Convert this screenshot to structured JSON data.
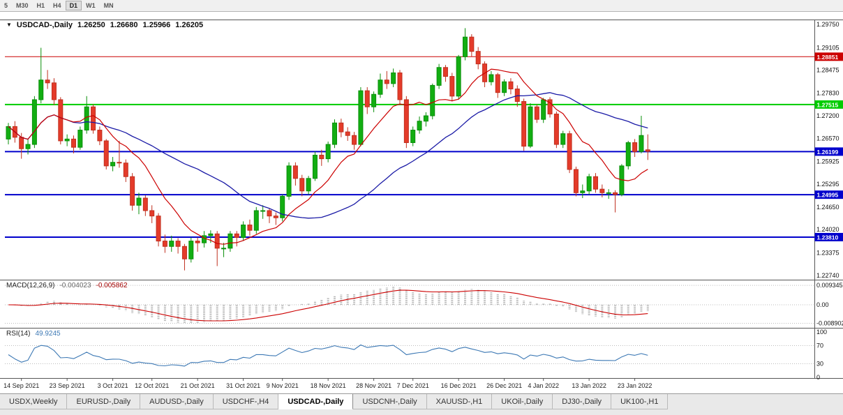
{
  "toolbar": {
    "periods": [
      "5",
      "M30",
      "H1",
      "H4",
      "D1",
      "W1",
      "MN"
    ],
    "active_period": "D1"
  },
  "chart": {
    "symbol_label": "USDCAD-,Daily",
    "ohlc": {
      "open": "1.26250",
      "high": "1.26680",
      "low": "1.25966",
      "close": "1.26205"
    }
  },
  "chart_data": {
    "type": "candlestick",
    "title": "USDCAD-,Daily",
    "ylim": [
      1.2262,
      1.2989
    ],
    "up_color": "#0a8f0a",
    "up_fill": "#12ae12",
    "down_color": "#c0301f",
    "down_fill": "#e43b2a",
    "ma_fast": {
      "period": 10,
      "color": "#cc0000"
    },
    "ma_slow": {
      "period": 30,
      "color": "#1a1aa6"
    },
    "price_ticks": [
      1.2975,
      1.29105,
      1.28475,
      1.2783,
      1.272,
      1.2657,
      1.25925,
      1.25295,
      1.2465,
      1.2402,
      1.23375,
      1.2274
    ],
    "hlines": [
      {
        "value": 1.28851,
        "color": "#cc0000",
        "width": 1
      },
      {
        "value": 1.27515,
        "color": "#00cc00",
        "width": 2
      },
      {
        "value": 1.26199,
        "color": "#0000cc",
        "width": 2
      },
      {
        "value": 1.24995,
        "color": "#0000cc",
        "width": 2
      },
      {
        "value": 1.2381,
        "color": "#0000cc",
        "width": 2
      }
    ],
    "date_ticks": [
      {
        "i": 2,
        "label": "14 Sep 2021"
      },
      {
        "i": 9,
        "label": "23 Sep 2021"
      },
      {
        "i": 16,
        "label": "3 Oct 2021"
      },
      {
        "i": 22,
        "label": "12 Oct 2021"
      },
      {
        "i": 29,
        "label": "21 Oct 2021"
      },
      {
        "i": 36,
        "label": "31 Oct 2021"
      },
      {
        "i": 42,
        "label": "9 Nov 2021"
      },
      {
        "i": 49,
        "label": "18 Nov 2021"
      },
      {
        "i": 56,
        "label": "28 Nov 2021"
      },
      {
        "i": 62,
        "label": "7 Dec 2021"
      },
      {
        "i": 69,
        "label": "16 Dec 2021"
      },
      {
        "i": 76,
        "label": "26 Dec 2021"
      },
      {
        "i": 82,
        "label": "4 Jan 2022"
      },
      {
        "i": 89,
        "label": "13 Jan 2022"
      },
      {
        "i": 96,
        "label": "23 Jan 2022"
      }
    ],
    "candles": [
      [
        1.2655,
        1.27,
        1.264,
        1.269
      ],
      [
        1.269,
        1.2705,
        1.2645,
        1.266
      ],
      [
        1.266,
        1.2672,
        1.26,
        1.2628
      ],
      [
        1.2628,
        1.2655,
        1.2612,
        1.264
      ],
      [
        1.264,
        1.2775,
        1.263,
        1.2765
      ],
      [
        1.2765,
        1.291,
        1.2755,
        1.282
      ],
      [
        1.282,
        1.2848,
        1.2795,
        1.2812
      ],
      [
        1.2812,
        1.2825,
        1.275,
        1.2765
      ],
      [
        1.2765,
        1.2772,
        1.264,
        1.265
      ],
      [
        1.265,
        1.2668,
        1.2635,
        1.2655
      ],
      [
        1.2655,
        1.2665,
        1.2615,
        1.2632
      ],
      [
        1.2632,
        1.269,
        1.2625,
        1.268
      ],
      [
        1.268,
        1.2775,
        1.267,
        1.2745
      ],
      [
        1.2745,
        1.2752,
        1.267,
        1.268
      ],
      [
        1.268,
        1.269,
        1.2638,
        1.265
      ],
      [
        1.265,
        1.2655,
        1.257,
        1.258
      ],
      [
        1.258,
        1.2605,
        1.2565,
        1.259
      ],
      [
        1.259,
        1.265,
        1.2575,
        1.2588
      ],
      [
        1.2588,
        1.2598,
        1.2535,
        1.255
      ],
      [
        1.255,
        1.256,
        1.2455,
        1.247
      ],
      [
        1.247,
        1.2505,
        1.2445,
        1.249
      ],
      [
        1.249,
        1.2498,
        1.244,
        1.2455
      ],
      [
        1.2455,
        1.247,
        1.242,
        1.244
      ],
      [
        1.244,
        1.2448,
        1.2355,
        1.237
      ],
      [
        1.237,
        1.2388,
        1.2337,
        1.2355
      ],
      [
        1.2355,
        1.2385,
        1.234,
        1.237
      ],
      [
        1.237,
        1.2378,
        1.2335,
        1.2355
      ],
      [
        1.2355,
        1.2362,
        1.2288,
        1.232
      ],
      [
        1.232,
        1.238,
        1.231,
        1.237
      ],
      [
        1.237,
        1.238,
        1.234,
        1.2365
      ],
      [
        1.2365,
        1.2398,
        1.2352,
        1.2385
      ],
      [
        1.2385,
        1.24,
        1.2365,
        1.239
      ],
      [
        1.239,
        1.2398,
        1.23,
        1.235
      ],
      [
        1.235,
        1.2365,
        1.2325,
        1.235
      ],
      [
        1.235,
        1.2398,
        1.234,
        1.239
      ],
      [
        1.239,
        1.2398,
        1.2355,
        1.238
      ],
      [
        1.238,
        1.2425,
        1.237,
        1.2415
      ],
      [
        1.2415,
        1.243,
        1.2385,
        1.24
      ],
      [
        1.24,
        1.2465,
        1.239,
        1.2455
      ],
      [
        1.2455,
        1.247,
        1.2432,
        1.2455
      ],
      [
        1.2455,
        1.2462,
        1.242,
        1.244
      ],
      [
        1.244,
        1.245,
        1.2415,
        1.2435
      ],
      [
        1.2435,
        1.25,
        1.2425,
        1.2495
      ],
      [
        1.2495,
        1.259,
        1.2485,
        1.258
      ],
      [
        1.258,
        1.259,
        1.2525,
        1.2545
      ],
      [
        1.2545,
        1.2555,
        1.2495,
        1.251
      ],
      [
        1.251,
        1.2552,
        1.25,
        1.2545
      ],
      [
        1.2545,
        1.262,
        1.2538,
        1.261
      ],
      [
        1.261,
        1.2625,
        1.258,
        1.26
      ],
      [
        1.26,
        1.2648,
        1.259,
        1.264
      ],
      [
        1.264,
        1.271,
        1.263,
        1.27
      ],
      [
        1.27,
        1.2712,
        1.266,
        1.2675
      ],
      [
        1.2675,
        1.2688,
        1.265,
        1.2665
      ],
      [
        1.2665,
        1.2675,
        1.2625,
        1.264
      ],
      [
        1.264,
        1.28,
        1.2635,
        1.279
      ],
      [
        1.279,
        1.28,
        1.2725,
        1.2745
      ],
      [
        1.2745,
        1.2788,
        1.273,
        1.278
      ],
      [
        1.278,
        1.2838,
        1.277,
        1.282
      ],
      [
        1.282,
        1.2845,
        1.2795,
        1.281
      ],
      [
        1.281,
        1.2852,
        1.28,
        1.284
      ],
      [
        1.284,
        1.2848,
        1.275,
        1.2765
      ],
      [
        1.2765,
        1.2775,
        1.263,
        1.2645
      ],
      [
        1.2645,
        1.269,
        1.2635,
        1.268
      ],
      [
        1.268,
        1.2718,
        1.267,
        1.2705
      ],
      [
        1.2705,
        1.273,
        1.269,
        1.272
      ],
      [
        1.272,
        1.281,
        1.271,
        1.2805
      ],
      [
        1.2805,
        1.2865,
        1.2795,
        1.2855
      ],
      [
        1.2855,
        1.2862,
        1.2815,
        1.283
      ],
      [
        1.283,
        1.284,
        1.276,
        1.2775
      ],
      [
        1.2775,
        1.289,
        1.2765,
        1.2885
      ],
      [
        1.2885,
        1.2965,
        1.2875,
        1.294
      ],
      [
        1.294,
        1.2948,
        1.2885,
        1.29
      ],
      [
        1.29,
        1.2912,
        1.285,
        1.2865
      ],
      [
        1.2865,
        1.2872,
        1.28,
        1.2815
      ],
      [
        1.2815,
        1.2845,
        1.2805,
        1.2835
      ],
      [
        1.2835,
        1.284,
        1.277,
        1.2785
      ],
      [
        1.2785,
        1.2822,
        1.2775,
        1.2815
      ],
      [
        1.2815,
        1.2825,
        1.278,
        1.2795
      ],
      [
        1.2795,
        1.2805,
        1.2745,
        1.276
      ],
      [
        1.276,
        1.2768,
        1.2622,
        1.2635
      ],
      [
        1.2635,
        1.2755,
        1.263,
        1.2745
      ],
      [
        1.2745,
        1.2752,
        1.27,
        1.271
      ],
      [
        1.271,
        1.277,
        1.27,
        1.2765
      ],
      [
        1.2765,
        1.2772,
        1.2715,
        1.2725
      ],
      [
        1.2725,
        1.2732,
        1.263,
        1.264
      ],
      [
        1.264,
        1.2678,
        1.263,
        1.267
      ],
      [
        1.267,
        1.2678,
        1.256,
        1.257
      ],
      [
        1.257,
        1.2578,
        1.2495,
        1.2505
      ],
      [
        1.2505,
        1.2528,
        1.249,
        1.251
      ],
      [
        1.251,
        1.2558,
        1.25,
        1.255
      ],
      [
        1.255,
        1.256,
        1.2505,
        1.2515
      ],
      [
        1.2515,
        1.2528,
        1.2492,
        1.2505
      ],
      [
        1.2505,
        1.2515,
        1.2488,
        1.2505
      ],
      [
        1.2505,
        1.2512,
        1.245,
        1.25
      ],
      [
        1.25,
        1.2585,
        1.2495,
        1.258
      ],
      [
        1.258,
        1.265,
        1.257,
        1.2645
      ],
      [
        1.2645,
        1.2655,
        1.2605,
        1.262
      ],
      [
        1.262,
        1.272,
        1.2615,
        1.2665
      ],
      [
        1.2625,
        1.2668,
        1.25966,
        1.26205
      ]
    ]
  },
  "macd": {
    "label": "MACD(12,26,9)",
    "value1": "-0.004023",
    "value2": "-0.005862",
    "fast": 12,
    "slow": 26,
    "signal": 9,
    "hist_color": "#b8b8b8",
    "signal_color": "#cc0000",
    "ticks": [
      {
        "v": 0.009345,
        "label": "0.009345"
      },
      {
        "v": 0,
        "label": "0.00"
      },
      {
        "v": -0.008902,
        "label": "-0.008902"
      }
    ]
  },
  "rsi": {
    "label": "RSI(14)",
    "value": "49.9245",
    "period": 14,
    "color": "#3c78b4",
    "ticks": [
      {
        "v": 100,
        "label": "100"
      },
      {
        "v": 70,
        "label": "70"
      },
      {
        "v": 30,
        "label": "30"
      },
      {
        "v": 0,
        "label": "0"
      }
    ]
  },
  "tabs": [
    {
      "label": "USDX,Weekly",
      "active": false
    },
    {
      "label": "EURUSD-,Daily",
      "active": false
    },
    {
      "label": "AUDUSD-,Daily",
      "active": false
    },
    {
      "label": "USDCHF-,H4",
      "active": false
    },
    {
      "label": "USDCAD-,Daily",
      "active": true
    },
    {
      "label": "USDCNH-,Daily",
      "active": false
    },
    {
      "label": "XAUUSD-,H1",
      "active": false
    },
    {
      "label": "UKOil-,Daily",
      "active": false
    },
    {
      "label": "DJ30-,Daily",
      "active": false
    },
    {
      "label": "UK100-,H1",
      "active": false
    }
  ]
}
